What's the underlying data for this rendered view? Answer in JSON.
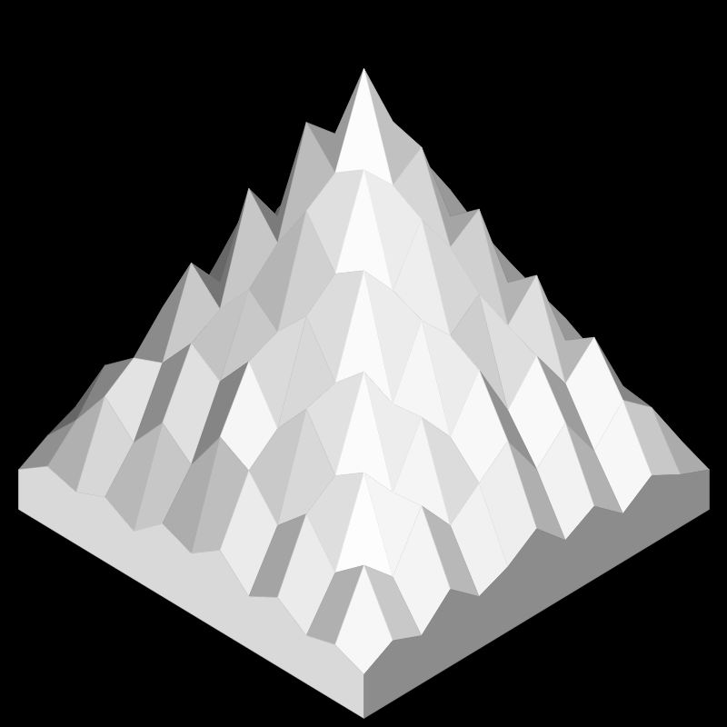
{
  "chart_data": {
    "type": "surface",
    "tick_labels": false,
    "zlim": [
      0,
      10
    ],
    "z": [
      [
        0.4,
        0.8,
        0.5,
        1.2,
        0.6,
        0.9,
        1.4,
        0.7,
        1.1,
        0.5,
        1.0,
        0.6,
        0.3
      ],
      [
        0.7,
        2.2,
        1.5,
        2.8,
        1.9,
        2.5,
        3.1,
        2.0,
        2.7,
        1.6,
        2.4,
        1.8,
        0.6
      ],
      [
        0.5,
        1.6,
        3.6,
        2.7,
        4.1,
        3.2,
        4.4,
        3.0,
        3.9,
        2.8,
        3.5,
        1.9,
        0.8
      ],
      [
        1.0,
        2.6,
        3.1,
        5.2,
        4.0,
        5.6,
        4.8,
        5.4,
        4.2,
        5.0,
        3.0,
        2.3,
        0.5
      ],
      [
        0.6,
        1.9,
        4.3,
        4.5,
        6.8,
        5.9,
        7.2,
        6.1,
        6.6,
        4.4,
        3.8,
        2.7,
        1.1
      ],
      [
        1.3,
        2.8,
        3.4,
        5.7,
        6.3,
        8.4,
        7.6,
        8.1,
        6.0,
        5.3,
        4.1,
        2.1,
        0.7
      ],
      [
        0.8,
        3.2,
        4.6,
        4.9,
        7.4,
        7.9,
        10.0,
        8.3,
        7.0,
        5.8,
        3.3,
        2.9,
        1.2
      ],
      [
        1.1,
        2.1,
        3.7,
        5.5,
        6.2,
        8.7,
        8.0,
        9.1,
        6.4,
        4.7,
        4.0,
        2.2,
        0.6
      ],
      [
        0.5,
        2.7,
        4.2,
        4.6,
        7.1,
        6.0,
        7.5,
        6.3,
        6.9,
        5.1,
        3.2,
        2.5,
        0.9
      ],
      [
        0.9,
        1.8,
        3.3,
        5.3,
        4.4,
        5.9,
        5.0,
        5.7,
        4.3,
        4.9,
        3.6,
        1.7,
        0.4
      ],
      [
        0.6,
        2.5,
        3.0,
        3.8,
        3.4,
        4.2,
        3.6,
        4.5,
        3.1,
        3.7,
        2.6,
        2.0,
        0.8
      ],
      [
        0.8,
        1.5,
        2.4,
        1.9,
        2.8,
        2.2,
        3.0,
        2.6,
        2.1,
        2.7,
        1.9,
        1.6,
        0.5
      ],
      [
        0.3,
        0.7,
        1.0,
        0.6,
        1.3,
        0.8,
        1.2,
        0.9,
        0.7,
        1.1,
        0.6,
        0.8,
        0.4
      ]
    ]
  }
}
